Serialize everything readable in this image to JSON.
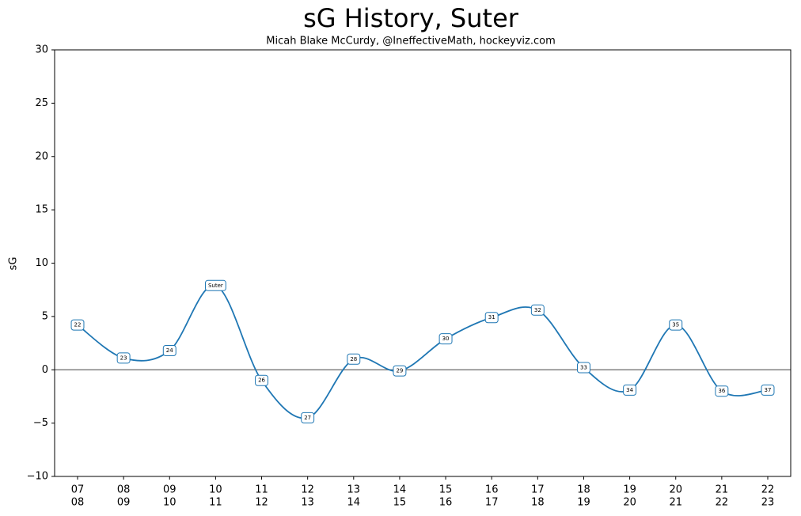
{
  "chart_data": {
    "type": "line",
    "title": "sG History, Suter",
    "subtitle": "Micah Blake McCurdy, @IneffectiveMath, hockeyviz.com",
    "y_label": "sG",
    "categories": [
      [
        "07",
        "08"
      ],
      [
        "08",
        "09"
      ],
      [
        "09",
        "10"
      ],
      [
        "10",
        "11"
      ],
      [
        "11",
        "12"
      ],
      [
        "12",
        "13"
      ],
      [
        "13",
        "14"
      ],
      [
        "14",
        "15"
      ],
      [
        "15",
        "16"
      ],
      [
        "16",
        "17"
      ],
      [
        "17",
        "18"
      ],
      [
        "18",
        "19"
      ],
      [
        "19",
        "20"
      ],
      [
        "20",
        "21"
      ],
      [
        "21",
        "22"
      ],
      [
        "22",
        "23"
      ]
    ],
    "series": [
      {
        "name": "Suter",
        "color": "#1f77b4",
        "values": [
          4.2,
          1.1,
          1.8,
          7.9,
          -1.0,
          -4.5,
          1.0,
          -0.1,
          2.9,
          4.9,
          5.6,
          0.2,
          -1.9,
          4.2,
          -2.0,
          -1.9
        ],
        "point_labels": [
          "22",
          "23",
          "24",
          "Suter",
          "26",
          "27",
          "28",
          "29",
          "30",
          "31",
          "32",
          "33",
          "34",
          "35",
          "36",
          "37"
        ]
      }
    ],
    "reference_line": 0,
    "reference_color": "#808080",
    "ylim": [
      -10,
      30
    ],
    "yticks": [
      {
        "value": -10,
        "label": "−10"
      },
      {
        "value": -5,
        "label": "−5"
      },
      0,
      5,
      10,
      15,
      20,
      25,
      30
    ]
  }
}
